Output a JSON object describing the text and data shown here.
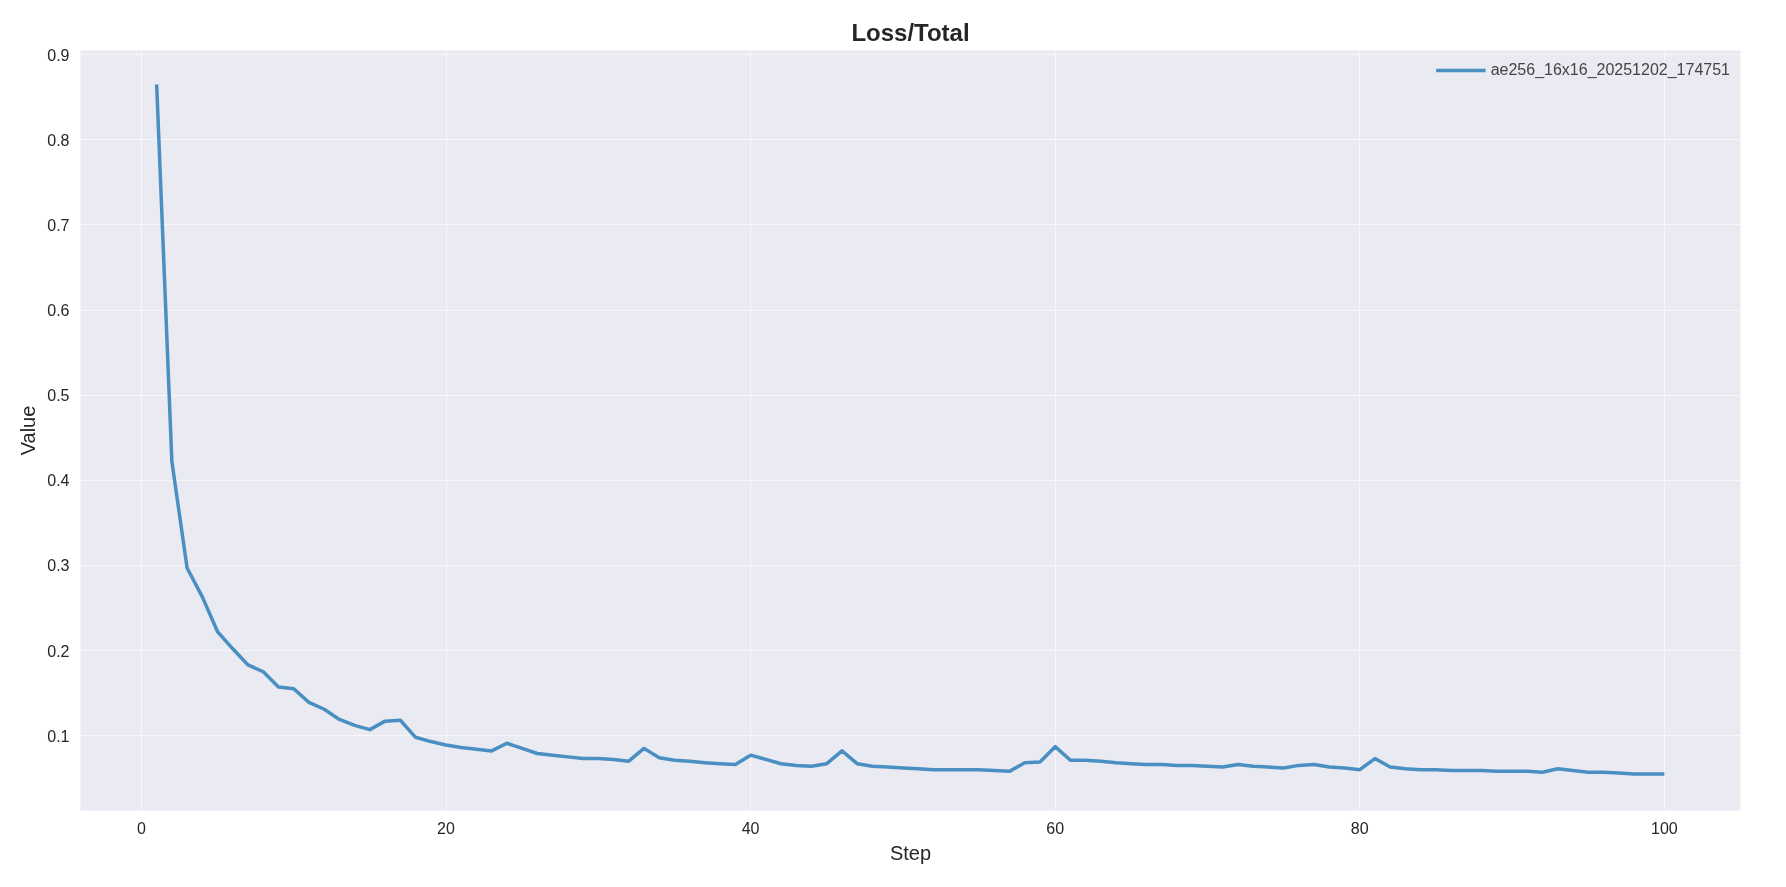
{
  "chart_data": {
    "type": "line",
    "title": "Loss/Total",
    "xlabel": "Step",
    "ylabel": "Value",
    "x": [
      1,
      2,
      3,
      4,
      5,
      6,
      7,
      8,
      9,
      10,
      11,
      12,
      13,
      14,
      15,
      16,
      17,
      18,
      19,
      20,
      21,
      22,
      23,
      24,
      25,
      26,
      27,
      28,
      29,
      30,
      31,
      32,
      33,
      34,
      35,
      36,
      37,
      38,
      39,
      40,
      41,
      42,
      43,
      44,
      45,
      46,
      47,
      48,
      49,
      50,
      51,
      52,
      53,
      54,
      55,
      56,
      57,
      58,
      59,
      60,
      61,
      62,
      63,
      64,
      65,
      66,
      67,
      68,
      69,
      70,
      71,
      72,
      73,
      74,
      75,
      76,
      77,
      78,
      79,
      80,
      81,
      82,
      83,
      84,
      85,
      86,
      87,
      88,
      89,
      90,
      91,
      92,
      93,
      94,
      95,
      96,
      97,
      98,
      99,
      100
    ],
    "series": [
      {
        "name": "ae256_16x16_20251202_174751",
        "color": "#4a8fc1",
        "values": [
          0.865,
          0.422,
          0.297,
          0.263,
          0.222,
          0.202,
          0.183,
          0.175,
          0.157,
          0.155,
          0.139,
          0.131,
          0.119,
          0.112,
          0.107,
          0.117,
          0.118,
          0.098,
          0.093,
          0.089,
          0.086,
          0.084,
          0.082,
          0.091,
          0.085,
          0.079,
          0.077,
          0.075,
          0.073,
          0.073,
          0.072,
          0.07,
          0.085,
          0.074,
          0.071,
          0.07,
          0.068,
          0.067,
          0.066,
          0.077,
          0.072,
          0.067,
          0.065,
          0.064,
          0.067,
          0.082,
          0.067,
          0.064,
          0.063,
          0.062,
          0.061,
          0.06,
          0.06,
          0.06,
          0.06,
          0.059,
          0.058,
          0.068,
          0.069,
          0.087,
          0.071,
          0.071,
          0.07,
          0.068,
          0.067,
          0.066,
          0.066,
          0.065,
          0.065,
          0.064,
          0.063,
          0.066,
          0.064,
          0.063,
          0.062,
          0.065,
          0.066,
          0.063,
          0.062,
          0.06,
          0.073,
          0.063,
          0.061,
          0.06,
          0.06,
          0.059,
          0.059,
          0.059,
          0.058,
          0.058,
          0.058,
          0.057,
          0.061,
          0.059,
          0.057,
          0.057,
          0.056,
          0.055,
          0.055,
          0.055
        ]
      }
    ],
    "xlim": [
      -4,
      105
    ],
    "ylim": [
      0.012,
      0.905
    ],
    "xticks": [
      0,
      20,
      40,
      60,
      80,
      100
    ],
    "yticks": [
      0.1,
      0.2,
      0.3,
      0.4,
      0.5,
      0.6,
      0.7,
      0.8,
      0.9
    ],
    "grid": true,
    "legend": "top right"
  }
}
